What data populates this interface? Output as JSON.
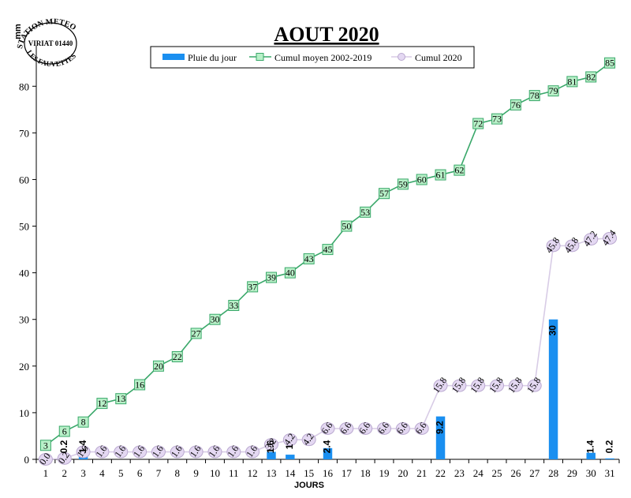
{
  "chart_data": {
    "type": "bar",
    "title": "AOUT 2020",
    "xlabel": "JOURS",
    "ylabel": "mm",
    "ylim": [
      0,
      88
    ],
    "yticks": [
      0,
      10,
      20,
      30,
      40,
      50,
      60,
      70,
      80
    ],
    "categories": [
      "1",
      "2",
      "3",
      "4",
      "5",
      "6",
      "7",
      "8",
      "9",
      "10",
      "11",
      "12",
      "13",
      "14",
      "15",
      "16",
      "17",
      "18",
      "19",
      "20",
      "21",
      "22",
      "23",
      "24",
      "25",
      "26",
      "27",
      "28",
      "29",
      "30",
      "31"
    ],
    "legend_position": "top",
    "grid": false,
    "series": [
      {
        "name": "Pluie du jour",
        "kind": "bar",
        "color": "#1a8ff0",
        "values": [
          0,
          0.2,
          1.4,
          0,
          0,
          0,
          0,
          0,
          0,
          0,
          0,
          0,
          1.6,
          1,
          0,
          2.4,
          0,
          0,
          0,
          0,
          0,
          9.2,
          0,
          0,
          0,
          0,
          0,
          30,
          0,
          1.4,
          0.2
        ],
        "labels": [
          "",
          "0.2",
          "1.4",
          "",
          "",
          "",
          "",
          "",
          "",
          "",
          "",
          "",
          "1.6",
          "1",
          "",
          "2.4",
          "",
          "",
          "",
          "",
          "",
          "9.2",
          "",
          "",
          "",
          "",
          "",
          "30",
          "",
          "1.4",
          "0.2"
        ]
      },
      {
        "name": "Cumul moyen 2002-2019",
        "kind": "line",
        "color": "#3aa86a",
        "marker_fill": "#b8f0c8",
        "values": [
          3,
          6,
          8,
          12,
          13,
          16,
          20,
          22,
          27,
          30,
          33,
          37,
          39,
          40,
          43,
          45,
          50,
          53,
          57,
          59,
          60,
          61,
          62,
          72,
          73,
          76,
          78,
          79,
          81,
          82,
          85
        ]
      },
      {
        "name": "Cumul 2020",
        "kind": "line",
        "color": "#d8cce6",
        "marker_fill": "#e4d8f2",
        "values": [
          0,
          0.2,
          1.6,
          1.6,
          1.6,
          1.6,
          1.6,
          1.6,
          1.6,
          1.6,
          1.6,
          1.6,
          3.2,
          4.2,
          4.2,
          6.6,
          6.6,
          6.6,
          6.6,
          6.6,
          6.6,
          15.8,
          15.8,
          15.8,
          15.8,
          15.8,
          15.8,
          45.8,
          45.8,
          47.2,
          47.4
        ],
        "labels": [
          "0.0",
          "0.2",
          "1.6",
          "1.6",
          "1.6",
          "1.6",
          "1.6",
          "1.6",
          "1.6",
          "1.6",
          "1.6",
          "1.6",
          "3.2",
          "4.2",
          "4.2",
          "6.6",
          "6.6",
          "6.6",
          "6.6",
          "6.6",
          "6.6",
          "15.8",
          "15.8",
          "15.8",
          "15.8",
          "15.8",
          "15.8",
          "45.8",
          "45.8",
          "47.2",
          "47.4"
        ]
      }
    ]
  },
  "stamp": {
    "top_text": "STATION METEO",
    "middle_text": "VIRIAT 01440",
    "bottom_text": "LES FAUVETTES"
  }
}
